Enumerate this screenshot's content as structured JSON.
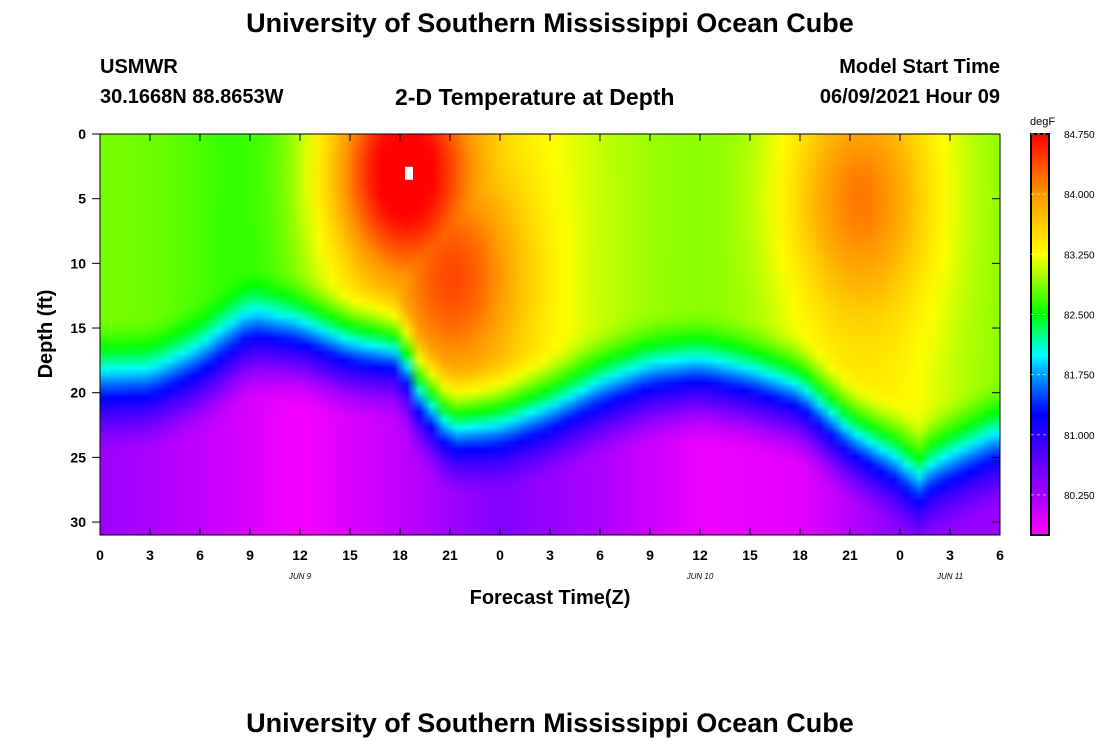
{
  "header": {
    "title": "University of Southern Mississippi Ocean Cube",
    "station": "USMWR",
    "coords": "30.1668N  88.8653W",
    "subtitle": "2-D Temperature at Depth",
    "model_start_label": "Model Start Time",
    "model_start_value": "06/09/2021 Hour 09"
  },
  "footer": {
    "title": "University of Southern Mississippi Ocean Cube"
  },
  "chart_data": {
    "type": "heatmap",
    "title": "2-D Temperature at Depth",
    "xlabel": "Forecast Time(Z)",
    "ylabel": "Depth (ft)",
    "xlim": [
      0,
      54
    ],
    "ylim": [
      31,
      0
    ],
    "x_ticks": [
      0,
      3,
      6,
      9,
      12,
      15,
      18,
      21,
      24,
      27,
      30,
      33,
      36,
      39,
      42,
      45,
      48,
      51,
      54
    ],
    "x_tick_labels": [
      "0",
      "3",
      "6",
      "9",
      "12",
      "15",
      "18",
      "21",
      "0",
      "3",
      "6",
      "9",
      "12",
      "15",
      "18",
      "21",
      "0",
      "3",
      "6"
    ],
    "y_ticks": [
      0,
      5,
      10,
      15,
      20,
      25,
      30
    ],
    "y_tick_labels": [
      "0",
      "5",
      "10",
      "15",
      "20",
      "25",
      "30"
    ],
    "date_labels": [
      {
        "x": 12,
        "label": "JUN 9"
      },
      {
        "x": 36,
        "label": "JUN 10"
      },
      {
        "x": 51,
        "label": "JUN 11"
      }
    ],
    "colorbar": {
      "unit": "degF",
      "min": 79.75,
      "max": 84.75,
      "tick_values": [
        84.75,
        84.0,
        83.25,
        82.5,
        81.75,
        81.0,
        80.25
      ],
      "tick_labels": [
        "84.750",
        "84.000",
        "83.250",
        "82.500",
        "81.750",
        "81.000",
        "80.250"
      ]
    },
    "thermocline_depth_ft": {
      "times": [
        0,
        3,
        6,
        9,
        12,
        15,
        18,
        19,
        21,
        24,
        27,
        30,
        33,
        36,
        39,
        42,
        45,
        48,
        49,
        50,
        51,
        54
      ],
      "depths": [
        17.5,
        17.5,
        16.0,
        13.5,
        14.0,
        15.0,
        15.0,
        18.0,
        21.0,
        20.5,
        19.5,
        18.0,
        17.0,
        16.8,
        17.5,
        18.5,
        21.5,
        23.5,
        25.0,
        24.0,
        23.5,
        22.0
      ]
    },
    "deep_minimum_degF": {
      "times": [
        0,
        6,
        12,
        18,
        24,
        30,
        36,
        42,
        48,
        54
      ],
      "values": [
        80.3,
        80.1,
        79.8,
        80.1,
        80.45,
        80.2,
        79.85,
        79.9,
        80.4,
        80.3
      ]
    },
    "surface_maxima": [
      {
        "time": 18,
        "depth": 3,
        "value": 84.7
      },
      {
        "time": 21,
        "depth": 11,
        "value": 84.0
      },
      {
        "time": 45.5,
        "depth": 5,
        "value": 83.8
      }
    ]
  }
}
